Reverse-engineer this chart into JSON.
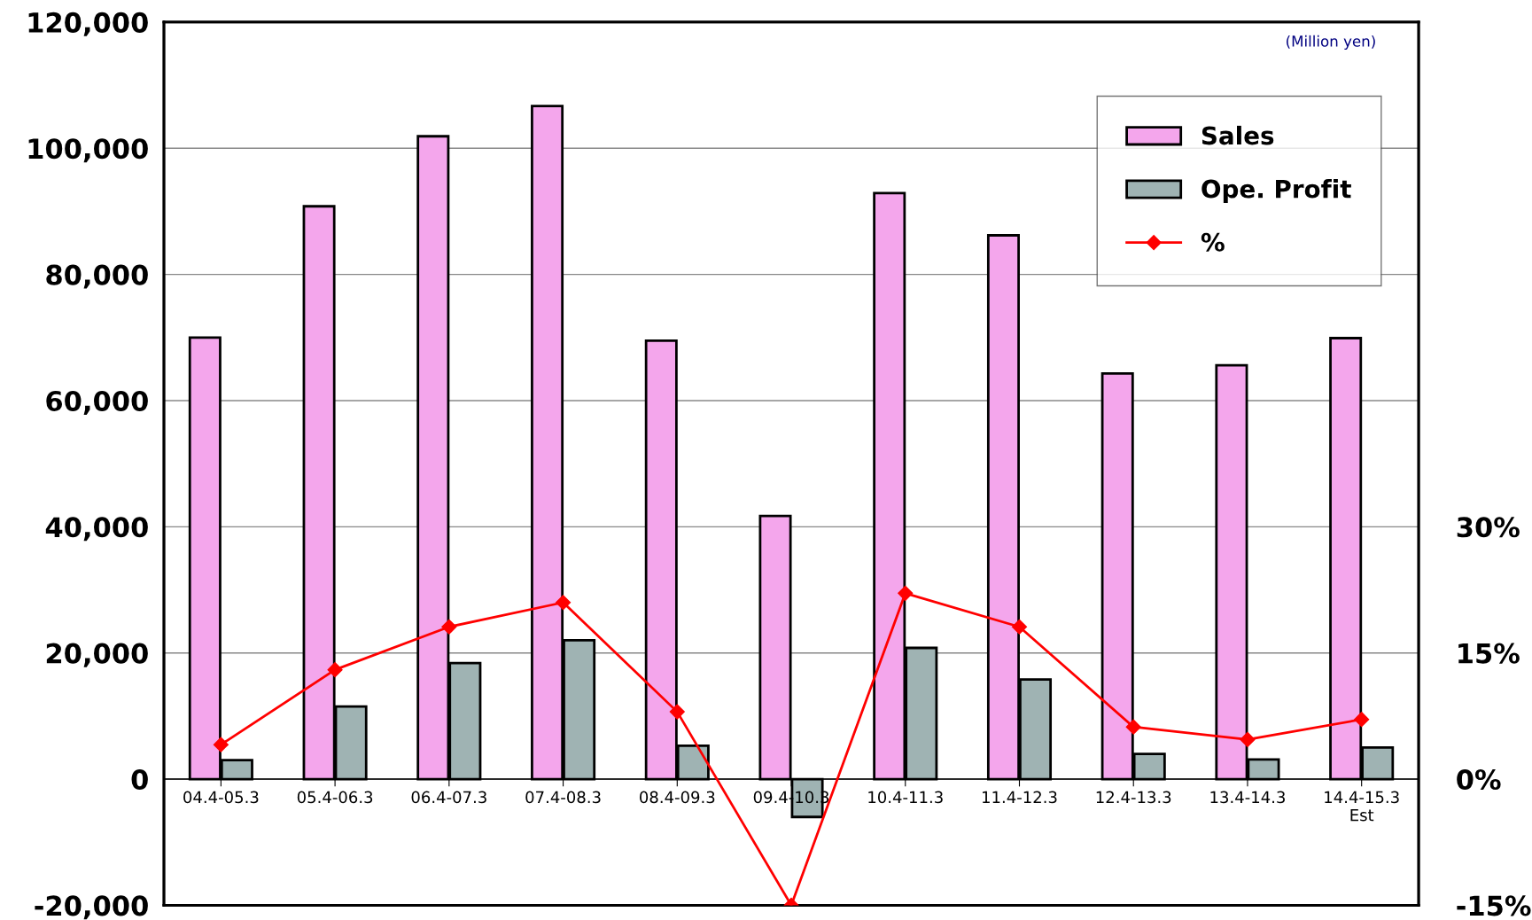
{
  "chart_data": {
    "type": "bar",
    "categories": [
      "04.4-05.3",
      "05.4-06.3",
      "06.4-07.3",
      "07.4-08.3",
      "08.4-09.3",
      "09.4-10.3",
      "10.4-11.3",
      "11.4-12.3",
      "12.4-13.3",
      "13.4-14.3",
      "14.4-15.3\nEst"
    ],
    "series": [
      {
        "name": "Sales",
        "color": "#f4a6ec",
        "values": [
          70000,
          90800,
          101900,
          106700,
          69500,
          41700,
          92900,
          86200,
          64300,
          65600,
          69900
        ]
      },
      {
        "name": "Ope. Profit",
        "color": "#9fb3b3",
        "values": [
          3000,
          11500,
          18400,
          22000,
          5300,
          -6000,
          20800,
          15800,
          4000,
          3100,
          5000
        ]
      },
      {
        "name": "%",
        "type": "line",
        "axis": "y2",
        "color": "#ff0000",
        "marker": "diamond",
        "values": [
          4.1,
          13.0,
          18.1,
          21.0,
          8.0,
          -15.0,
          22.1,
          18.1,
          6.2,
          4.7,
          7.1
        ]
      }
    ],
    "ylim": [
      -20000,
      120000
    ],
    "yticks": [
      {
        "value": -20000,
        "label": "-20,000"
      },
      {
        "value": 0,
        "label": "0"
      },
      {
        "value": 20000,
        "label": "20,000"
      },
      {
        "value": 40000,
        "label": "40,000"
      },
      {
        "value": 60000,
        "label": "60,000"
      },
      {
        "value": 80000,
        "label": "80,000"
      },
      {
        "value": 100000,
        "label": "100,000"
      },
      {
        "value": 120000,
        "label": "120,000"
      }
    ],
    "y2lim": [
      -15,
      90
    ],
    "y2ticks": [
      {
        "value": -15,
        "label": "-15%"
      },
      {
        "value": 0,
        "label": "0%"
      },
      {
        "value": 15,
        "label": "15%"
      },
      {
        "value": 30,
        "label": "30%"
      }
    ],
    "annotations": [
      "(Million yen)"
    ],
    "grid": "y",
    "legend": "top right"
  }
}
